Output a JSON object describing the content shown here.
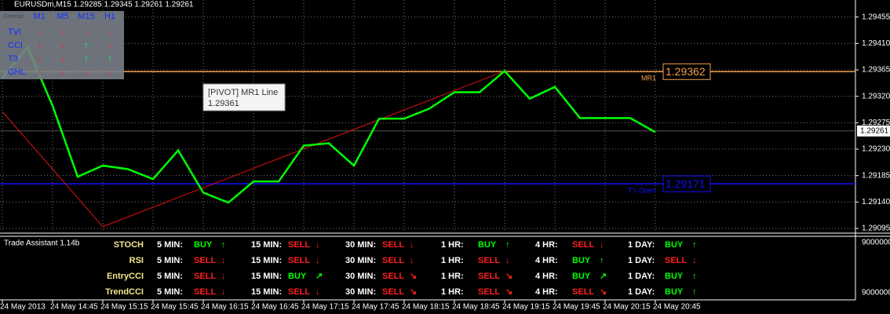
{
  "header": "EURUSDm,M15  1.29285 1.29345 1.29261 1.29261",
  "chart_data": {
    "type": "line",
    "categories": [
      "24 May 2013",
      null,
      "24 May 14:45",
      null,
      "24 May 15:15",
      null,
      "24 May 15:45",
      null,
      "24 May 16:15",
      null,
      "24 May 16:45",
      null,
      "24 May 17:15",
      null,
      "24 May 17:45",
      null,
      "24 May 18:15",
      null,
      "24 May 18:45",
      null,
      "24 May 19:15",
      null,
      "24 May 19:45",
      null,
      "24 May 20:15",
      null,
      "24 May 20:45"
    ],
    "series": [
      {
        "color": "#00ff00",
        "values": [
          1.29351,
          1.29404,
          1.29304,
          1.29183,
          1.29202,
          1.29196,
          1.29179,
          1.29228,
          1.29156,
          1.29139,
          1.29175,
          1.29175,
          1.29236,
          1.2924,
          1.29202,
          1.29282,
          1.29282,
          1.29299,
          1.29327,
          1.29327,
          1.29363,
          1.29316,
          1.29336,
          1.29283,
          1.29283,
          1.29283,
          1.29259
        ]
      }
    ],
    "ylim": [
      1.29087,
      1.29484
    ],
    "yticks": [
      1.29455,
      {
        "value": 1.2941,
        "label": "1.29410"
      },
      1.29365,
      {
        "value": 1.2932,
        "label": "1.29320"
      },
      1.29275,
      {
        "value": 1.2923,
        "label": "1.29230"
      },
      1.29185,
      {
        "value": 1.2914,
        "label": "1.29140"
      },
      1.29095
    ],
    "grid": true,
    "last_price": 1.29261,
    "levels": [
      {
        "name": "MR1",
        "value": 1.29362,
        "color": "#f5a04a"
      },
      {
        "name": "T's Open",
        "value": 1.29171,
        "color": "#1010ff"
      }
    ],
    "zigzag": {
      "color": "#e01010",
      "x": [
        0,
        4,
        20
      ],
      "values": [
        1.29294,
        1.29098,
        1.29363
      ]
    },
    "tooltip": {
      "title": "[PIVOT] MR1 Line",
      "value": 1.29361
    }
  },
  "indicator_panel": {
    "title": "Genesis",
    "columns": [
      "M1",
      "M5",
      "M15",
      "H1"
    ],
    "rows": [
      {
        "name": "TVI",
        "signals": [
          "↓",
          "↓",
          "↓",
          "↓"
        ]
      },
      {
        "name": "CCI",
        "signals": [
          "↓",
          "↓",
          "↑",
          "↓"
        ]
      },
      {
        "name": "T3",
        "signals": [
          "↓",
          "↓",
          "↑",
          "↑"
        ]
      },
      {
        "name": "GHL",
        "signals": [
          "↓",
          "↓",
          "↓",
          "↓"
        ]
      }
    ]
  },
  "trade_assistant": {
    "title": "Trade Assistant 1.14b",
    "scale_labels": [
      "9000000",
      "9000000"
    ],
    "columns": [
      "5 MIN:",
      "15 MIN:",
      "30 MIN:",
      "1 HR:",
      "4 HR:",
      "1 DAY:"
    ],
    "rows": [
      {
        "name": "STOCH",
        "signals": [
          {
            "signal": "BUY",
            "arrow": "↑"
          },
          {
            "signal": "SELL",
            "arrow": "↓"
          },
          {
            "signal": "SELL",
            "arrow": "↓"
          },
          {
            "signal": "BUY",
            "arrow": "↑"
          },
          {
            "signal": "SELL",
            "arrow": "↓"
          },
          {
            "signal": "BUY",
            "arrow": "↑"
          }
        ]
      },
      {
        "name": "RSI",
        "signals": [
          {
            "signal": "SELL",
            "arrow": "↓"
          },
          {
            "signal": "SELL",
            "arrow": "↓"
          },
          {
            "signal": "SELL",
            "arrow": "↓"
          },
          {
            "signal": "SELL",
            "arrow": "↓"
          },
          {
            "signal": "BUY",
            "arrow": "↑"
          },
          {
            "signal": "SELL",
            "arrow": "↓"
          }
        ]
      },
      {
        "name": "EntryCCI",
        "signals": [
          {
            "signal": "SELL",
            "arrow": "↓"
          },
          {
            "signal": "BUY",
            "arrow": "↗"
          },
          {
            "signal": "SELL",
            "arrow": "↘"
          },
          {
            "signal": "SELL",
            "arrow": "↘"
          },
          {
            "signal": "BUY",
            "arrow": "↗"
          },
          {
            "signal": "BUY",
            "arrow": "↑"
          }
        ]
      },
      {
        "name": "TrendCCI",
        "signals": [
          {
            "signal": "SELL",
            "arrow": "↓"
          },
          {
            "signal": "SELL",
            "arrow": "↓"
          },
          {
            "signal": "SELL",
            "arrow": "↘"
          },
          {
            "signal": "SELL",
            "arrow": "↘"
          },
          {
            "signal": "SELL",
            "arrow": "↘"
          },
          {
            "signal": "BUY",
            "arrow": "↑"
          }
        ]
      }
    ]
  }
}
